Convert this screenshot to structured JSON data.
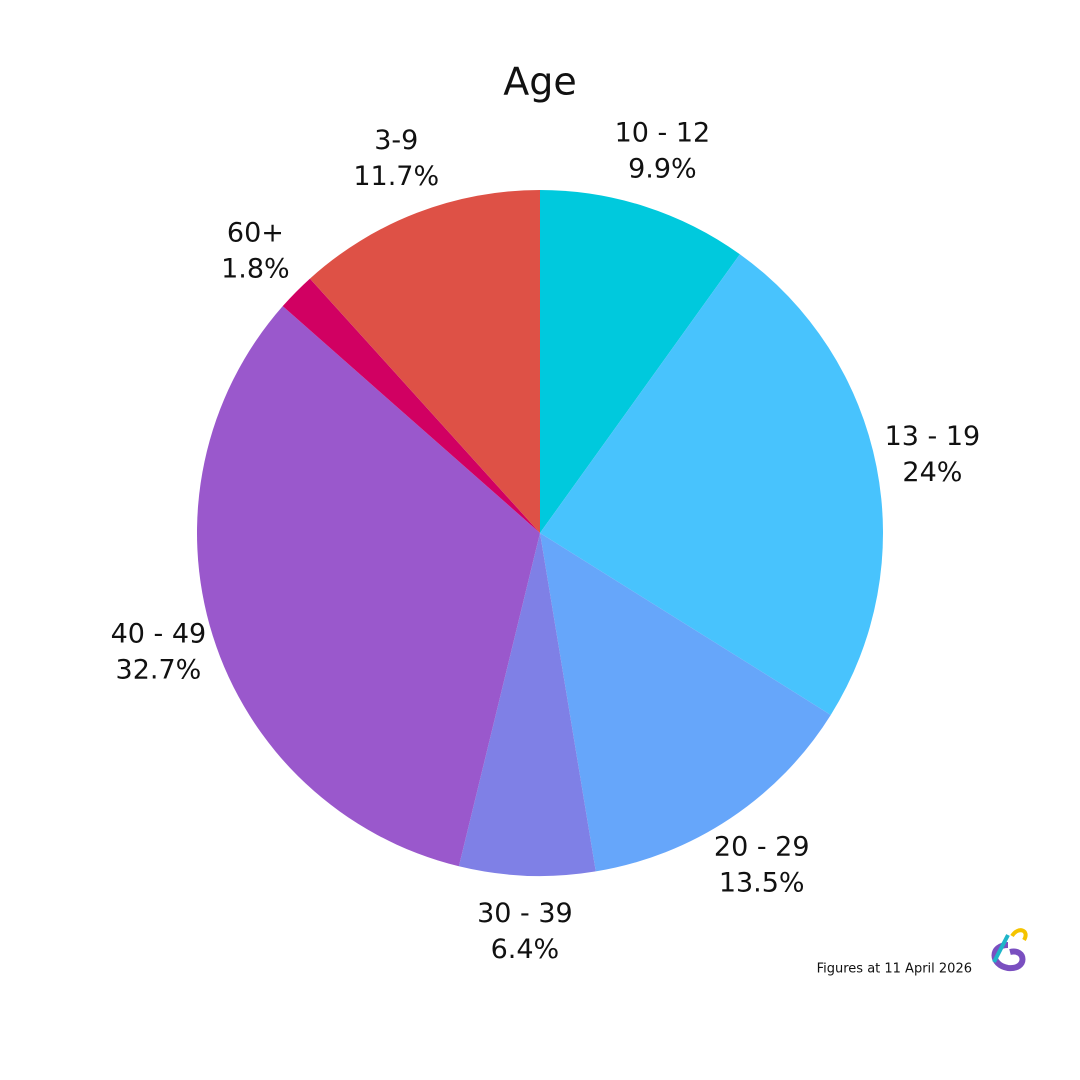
{
  "chart_data": {
    "type": "pie",
    "title": "Age",
    "categories": [
      "10 - 12",
      "13 - 19",
      "20 - 29",
      "30 - 39",
      "40 - 49",
      "60+",
      "3-9"
    ],
    "values": [
      9.9,
      24,
      13.5,
      6.4,
      32.7,
      1.8,
      11.7
    ],
    "value_labels": [
      "9.9%",
      "24%",
      "13.5%",
      "6.4%",
      "32.7%",
      "1.8%",
      "11.7%"
    ],
    "colors": [
      "#00c9dd",
      "#48c3fd",
      "#66a6fa",
      "#7f80e6",
      "#9a58cc",
      "#d10062",
      "#de5146"
    ],
    "footnote": "Figures at 11 April 2026"
  }
}
